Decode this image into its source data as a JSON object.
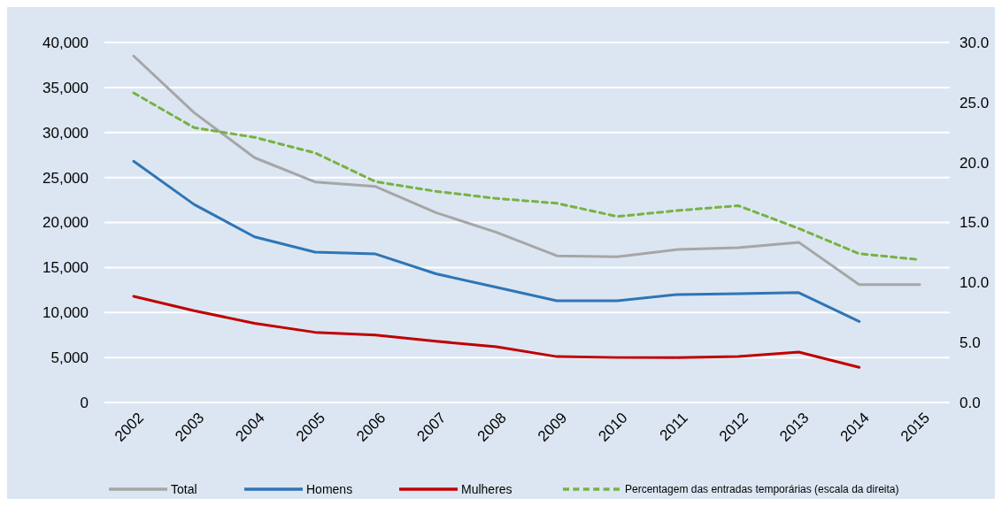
{
  "chart_data": {
    "type": "line",
    "categories": [
      "2002",
      "2003",
      "2004",
      "2005",
      "2006",
      "2007",
      "2008",
      "2009",
      "2010",
      "2011",
      "2012",
      "2013",
      "2014",
      "2015"
    ],
    "series": [
      {
        "name": "Total",
        "color": "#a6a6a6",
        "values": [
          38500,
          32200,
          27200,
          24500,
          24000,
          21100,
          18900,
          16300,
          16200,
          17000,
          17200,
          17800,
          13100,
          13100
        ]
      },
      {
        "name": "Homens",
        "color": "#2e75b6",
        "values": [
          26800,
          22000,
          18400,
          16700,
          16500,
          14300,
          12800,
          11300,
          11300,
          12000,
          12100,
          12200,
          9000,
          null
        ]
      },
      {
        "name": "Mulheres",
        "color": "#c00000",
        "values": [
          11800,
          10200,
          8800,
          7800,
          7500,
          6800,
          6200,
          5100,
          5000,
          5000,
          5100,
          5600,
          3900,
          null
        ]
      },
      {
        "name": "Percentagem das entradas temporárias (escala da direita)",
        "color": "#77b243",
        "axis": "y2",
        "line_style": "dashed",
        "values": [
          25.8,
          22.9,
          22.1,
          20.8,
          18.4,
          17.6,
          17.0,
          16.6,
          15.5,
          16.0,
          16.4,
          14.5,
          12.4,
          11.9
        ]
      }
    ],
    "ylim": [
      0,
      40000
    ],
    "yticks": [
      0,
      {
        "value": 5000,
        "label": "5,000"
      },
      {
        "value": 10000,
        "label": "10,000"
      },
      {
        "value": 15000,
        "label": "15,000"
      },
      {
        "value": 20000,
        "label": "20,000"
      },
      {
        "value": 25000,
        "label": "25,000"
      },
      {
        "value": 30000,
        "label": "30,000"
      },
      {
        "value": 35000,
        "label": "35,000"
      },
      {
        "value": 40000,
        "label": "40,000"
      }
    ],
    "y2lim": [
      0,
      30
    ],
    "y2ticks": [
      {
        "value": 0,
        "label": "0.0"
      },
      {
        "value": 5,
        "label": "5.0"
      },
      {
        "value": 10,
        "label": "10.0"
      },
      {
        "value": 15,
        "label": "15.0"
      },
      {
        "value": 20,
        "label": "20.0"
      },
      {
        "value": 25,
        "label": "25.0"
      },
      {
        "value": 30,
        "label": "30.0"
      }
    ],
    "grid": "y",
    "legend": "bottom"
  }
}
